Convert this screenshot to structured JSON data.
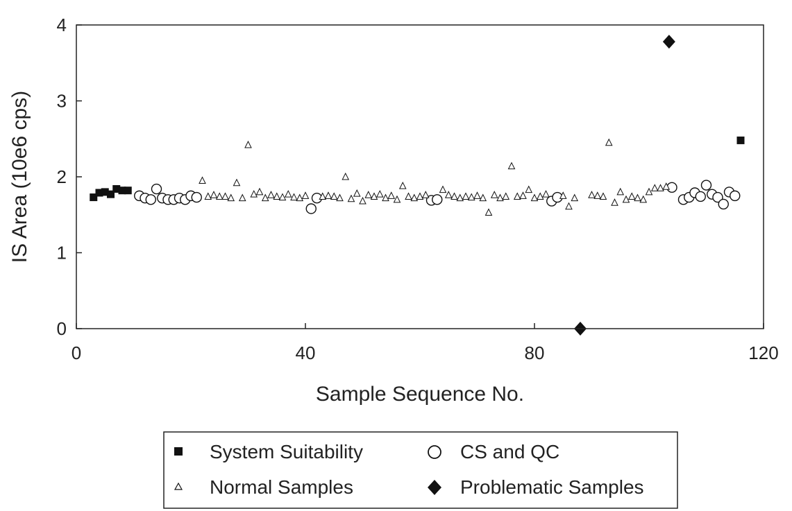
{
  "chart_data": {
    "type": "scatter",
    "title": "",
    "xlabel": "Sample Sequence No.",
    "ylabel": "IS Area (10e6 cps)",
    "xlim": [
      0,
      120
    ],
    "ylim": [
      0,
      4
    ],
    "xticks": [
      0,
      40,
      80,
      120
    ],
    "yticks": [
      0,
      1,
      2,
      3,
      4
    ],
    "grid": false,
    "legend_position": "bottom-center",
    "series": [
      {
        "name": "System Suitability",
        "marker": "square",
        "color": "#111111",
        "points": [
          [
            3,
            1.73
          ],
          [
            4,
            1.79
          ],
          [
            5,
            1.8
          ],
          [
            6,
            1.77
          ],
          [
            7,
            1.84
          ],
          [
            8,
            1.82
          ],
          [
            9,
            1.82
          ],
          [
            116,
            2.48
          ]
        ]
      },
      {
        "name": "CS and QC",
        "marker": "circle",
        "color": "#111111",
        "points": [
          [
            11,
            1.75
          ],
          [
            12,
            1.72
          ],
          [
            13,
            1.7
          ],
          [
            14,
            1.84
          ],
          [
            15,
            1.72
          ],
          [
            16,
            1.7
          ],
          [
            17,
            1.7
          ],
          [
            18,
            1.72
          ],
          [
            19,
            1.7
          ],
          [
            20,
            1.75
          ],
          [
            21,
            1.73
          ],
          [
            41,
            1.58
          ],
          [
            42,
            1.72
          ],
          [
            62,
            1.69
          ],
          [
            63,
            1.7
          ],
          [
            83,
            1.68
          ],
          [
            84,
            1.73
          ],
          [
            104,
            1.86
          ],
          [
            106,
            1.7
          ],
          [
            107,
            1.73
          ],
          [
            108,
            1.79
          ],
          [
            109,
            1.74
          ],
          [
            110,
            1.89
          ],
          [
            111,
            1.77
          ],
          [
            112,
            1.73
          ],
          [
            113,
            1.64
          ],
          [
            114,
            1.8
          ],
          [
            115,
            1.75
          ]
        ]
      },
      {
        "name": "Normal Samples",
        "marker": "triangle",
        "color": "#111111",
        "points": [
          [
            22,
            1.95
          ],
          [
            23,
            1.74
          ],
          [
            24,
            1.76
          ],
          [
            25,
            1.74
          ],
          [
            26,
            1.74
          ],
          [
            27,
            1.72
          ],
          [
            28,
            1.92
          ],
          [
            29,
            1.72
          ],
          [
            30,
            2.42
          ],
          [
            31,
            1.77
          ],
          [
            32,
            1.8
          ],
          [
            33,
            1.72
          ],
          [
            34,
            1.76
          ],
          [
            35,
            1.74
          ],
          [
            36,
            1.73
          ],
          [
            37,
            1.77
          ],
          [
            38,
            1.73
          ],
          [
            39,
            1.72
          ],
          [
            40,
            1.75
          ],
          [
            43,
            1.74
          ],
          [
            44,
            1.75
          ],
          [
            45,
            1.74
          ],
          [
            46,
            1.72
          ],
          [
            47,
            2.0
          ],
          [
            48,
            1.71
          ],
          [
            49,
            1.78
          ],
          [
            50,
            1.68
          ],
          [
            51,
            1.76
          ],
          [
            52,
            1.74
          ],
          [
            53,
            1.77
          ],
          [
            54,
            1.72
          ],
          [
            55,
            1.75
          ],
          [
            56,
            1.7
          ],
          [
            57,
            1.88
          ],
          [
            58,
            1.74
          ],
          [
            59,
            1.72
          ],
          [
            60,
            1.74
          ],
          [
            61,
            1.76
          ],
          [
            64,
            1.83
          ],
          [
            65,
            1.76
          ],
          [
            66,
            1.74
          ],
          [
            67,
            1.72
          ],
          [
            68,
            1.74
          ],
          [
            69,
            1.73
          ],
          [
            70,
            1.75
          ],
          [
            71,
            1.72
          ],
          [
            72,
            1.53
          ],
          [
            73,
            1.76
          ],
          [
            74,
            1.72
          ],
          [
            75,
            1.74
          ],
          [
            76,
            2.14
          ],
          [
            77,
            1.74
          ],
          [
            78,
            1.75
          ],
          [
            79,
            1.83
          ],
          [
            80,
            1.72
          ],
          [
            81,
            1.74
          ],
          [
            82,
            1.77
          ],
          [
            85,
            1.75
          ],
          [
            86,
            1.61
          ],
          [
            87,
            1.72
          ],
          [
            90,
            1.76
          ],
          [
            91,
            1.75
          ],
          [
            92,
            1.74
          ],
          [
            93,
            2.45
          ],
          [
            94,
            1.66
          ],
          [
            95,
            1.8
          ],
          [
            96,
            1.7
          ],
          [
            97,
            1.74
          ],
          [
            98,
            1.72
          ],
          [
            99,
            1.7
          ],
          [
            100,
            1.8
          ],
          [
            101,
            1.85
          ],
          [
            102,
            1.85
          ],
          [
            103,
            1.87
          ]
        ]
      },
      {
        "name": "Problematic Samples",
        "marker": "diamond",
        "color": "#111111",
        "points": [
          [
            88,
            0.0
          ],
          [
            103.5,
            3.78
          ]
        ]
      }
    ]
  }
}
